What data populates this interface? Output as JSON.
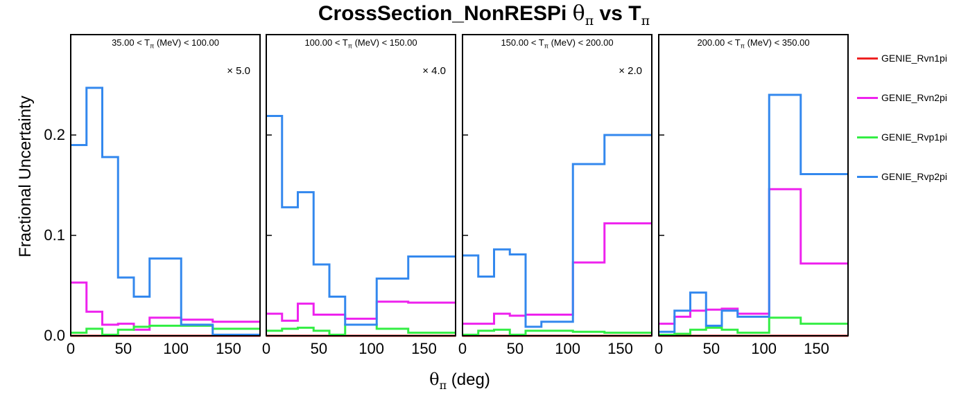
{
  "title": {
    "main": "CrossSection_NonRESPi ",
    "theta": "θ",
    "pi": "π",
    "vs": " vs T"
  },
  "ylabel": "Fractional Uncertainty",
  "xlabel": {
    "theta": "θ",
    "pi": "π",
    "unit": " (deg)"
  },
  "legend_placement": "right",
  "chart_data": {
    "type": "step",
    "bin_edges": [
      0,
      15,
      30,
      45,
      60,
      75,
      105,
      135,
      180
    ],
    "xlim": [
      0,
      180
    ],
    "ylim": [
      0,
      0.3
    ],
    "yticks": [
      "0.0",
      "0.1",
      "0.2"
    ],
    "xticks": [
      "0",
      "50",
      "100",
      "150"
    ],
    "colors": {
      "GENIE_Rvn1pi": "#ee2222",
      "GENIE_Rvn2pi": "#ee22ee",
      "GENIE_Rvp1pi": "#33ee44",
      "GENIE_Rvp2pi": "#3388ee"
    },
    "panels": [
      {
        "label_pre": "35.00 < T",
        "label_sub": "π",
        "label_post": " (MeV) < 100.00",
        "scale": "× 5.0",
        "series": [
          {
            "name": "GENIE_Rvn1pi",
            "values": [
              0.0,
              0.0,
              0.0,
              0.0,
              0.0,
              0.0,
              0.0,
              0.0
            ]
          },
          {
            "name": "GENIE_Rvn2pi",
            "values": [
              0.053,
              0.024,
              0.011,
              0.012,
              0.006,
              0.018,
              0.016,
              0.014
            ]
          },
          {
            "name": "GENIE_Rvp1pi",
            "values": [
              0.003,
              0.007,
              0.001,
              0.006,
              0.009,
              0.01,
              0.01,
              0.007
            ]
          },
          {
            "name": "GENIE_Rvp2pi",
            "values": [
              0.19,
              0.247,
              0.178,
              0.058,
              0.039,
              0.077,
              0.011,
              0.001
            ]
          }
        ]
      },
      {
        "label_pre": "100.00 < T",
        "label_sub": "π",
        "label_post": " (MeV) < 150.00",
        "scale": "× 4.0",
        "series": [
          {
            "name": "GENIE_Rvn1pi",
            "values": [
              0.0,
              0.0,
              0.0,
              0.0,
              0.0,
              0.0,
              0.0,
              0.0
            ]
          },
          {
            "name": "GENIE_Rvn2pi",
            "values": [
              0.022,
              0.015,
              0.032,
              0.021,
              0.021,
              0.017,
              0.034,
              0.033
            ]
          },
          {
            "name": "GENIE_Rvp1pi",
            "values": [
              0.005,
              0.007,
              0.008,
              0.005,
              0.001,
              0.011,
              0.007,
              0.003
            ]
          },
          {
            "name": "GENIE_Rvp2pi",
            "values": [
              0.219,
              0.128,
              0.143,
              0.071,
              0.039,
              0.011,
              0.057,
              0.079
            ]
          }
        ]
      },
      {
        "label_pre": "150.00 < T",
        "label_sub": "π",
        "label_post": " (MeV) < 200.00",
        "scale": "× 2.0",
        "series": [
          {
            "name": "GENIE_Rvn1pi",
            "values": [
              0.0,
              0.0,
              0.0,
              0.0,
              0.0,
              0.0,
              0.0,
              0.0
            ]
          },
          {
            "name": "GENIE_Rvn2pi",
            "values": [
              0.012,
              0.012,
              0.022,
              0.02,
              0.021,
              0.021,
              0.073,
              0.112
            ]
          },
          {
            "name": "GENIE_Rvp1pi",
            "values": [
              0.001,
              0.005,
              0.006,
              0.001,
              0.005,
              0.005,
              0.004,
              0.003
            ]
          },
          {
            "name": "GENIE_Rvp2pi",
            "values": [
              0.08,
              0.059,
              0.086,
              0.081,
              0.009,
              0.014,
              0.171,
              0.2
            ]
          }
        ]
      },
      {
        "label_pre": "200.00 < T",
        "label_sub": "π",
        "label_post": " (MeV) < 350.00",
        "scale": "",
        "series": [
          {
            "name": "GENIE_Rvn1pi",
            "values": [
              0.0,
              0.0,
              0.0,
              0.0,
              0.0,
              0.0,
              0.0,
              0.0
            ]
          },
          {
            "name": "GENIE_Rvn2pi",
            "values": [
              0.012,
              0.019,
              0.025,
              0.026,
              0.027,
              0.022,
              0.146,
              0.072
            ]
          },
          {
            "name": "GENIE_Rvp1pi",
            "values": [
              0.001,
              0.002,
              0.006,
              0.008,
              0.006,
              0.003,
              0.018,
              0.012
            ]
          },
          {
            "name": "GENIE_Rvp2pi",
            "values": [
              0.004,
              0.025,
              0.043,
              0.01,
              0.025,
              0.019,
              0.24,
              0.161
            ]
          }
        ]
      }
    ]
  }
}
